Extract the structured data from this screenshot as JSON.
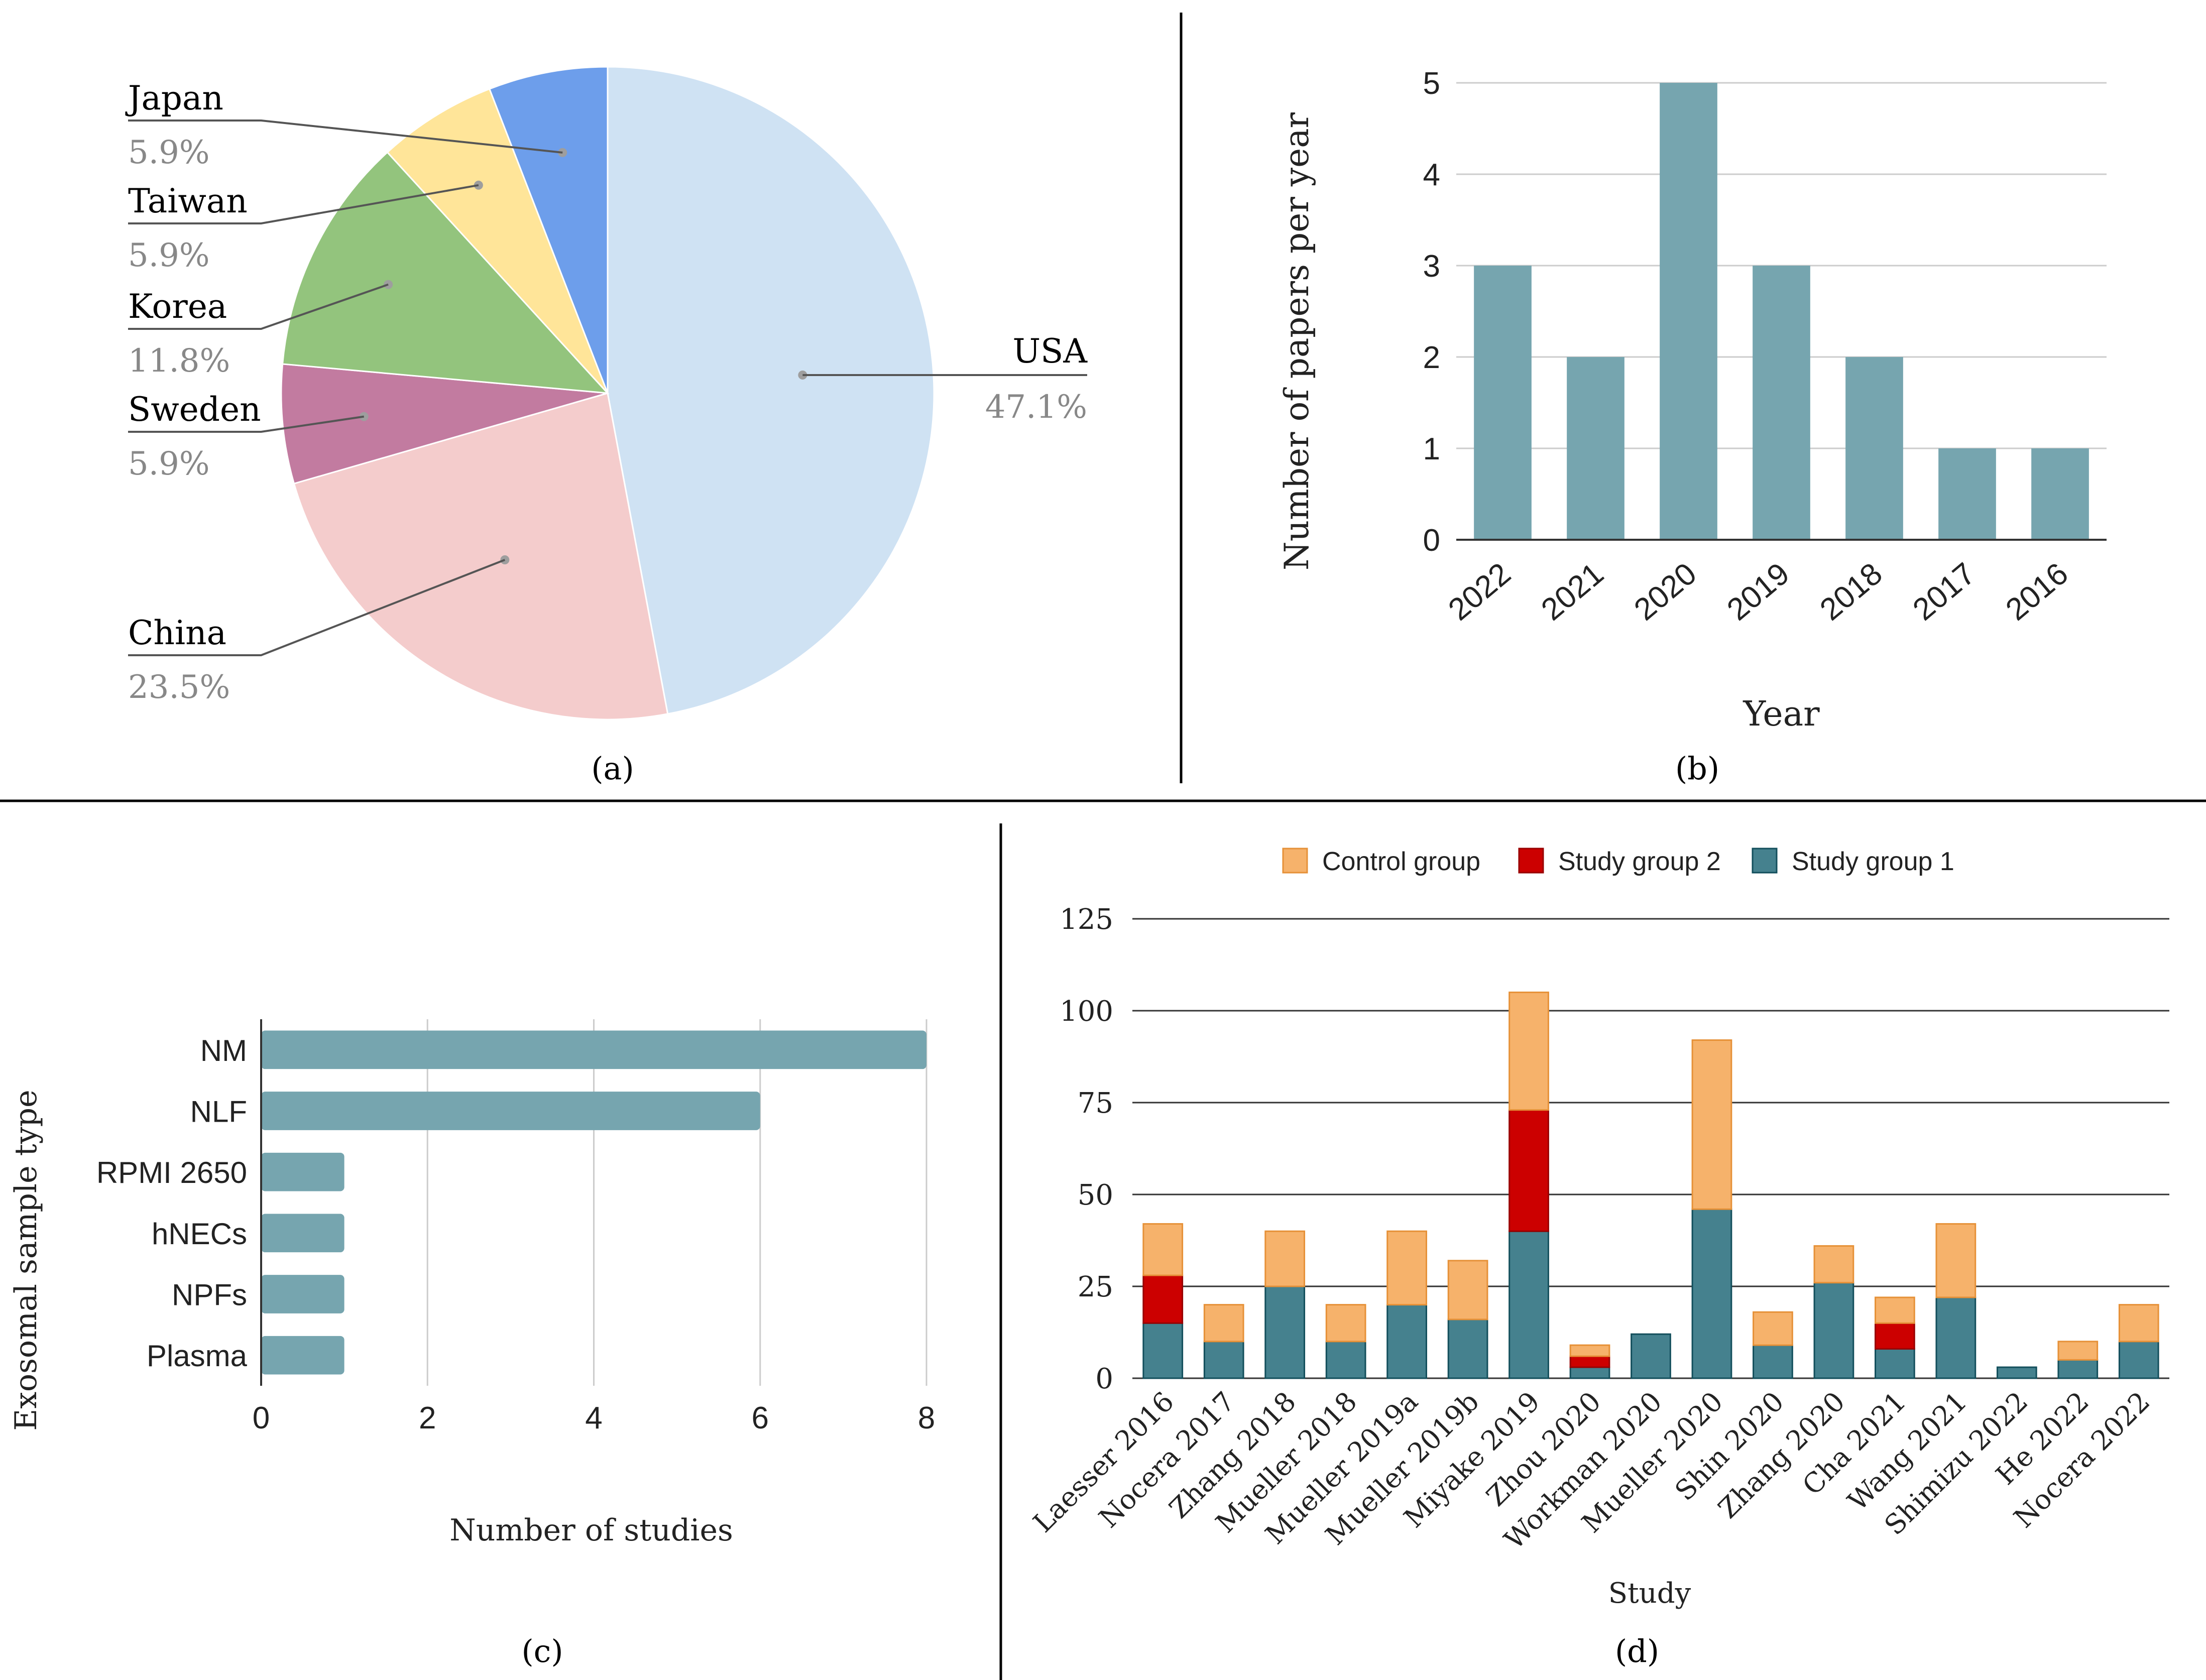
{
  "figure": {
    "panel_labels": [
      "(a)",
      "(b)",
      "(c)",
      "(d)"
    ]
  },
  "chart_data": [
    {
      "panel": "(a)",
      "type": "pie",
      "title": "",
      "slices": [
        {
          "label": "USA",
          "pct_label": "47.1%",
          "value": 47.1,
          "color": "#cfe2f3"
        },
        {
          "label": "China",
          "pct_label": "23.5%",
          "value": 23.5,
          "color": "#f4cccc"
        },
        {
          "label": "Sweden",
          "pct_label": "5.9%",
          "value": 5.9,
          "color": "#c27ba0"
        },
        {
          "label": "Korea",
          "pct_label": "11.8%",
          "value": 11.8,
          "color": "#93c47d"
        },
        {
          "label": "Taiwan",
          "pct_label": "5.9%",
          "value": 5.9,
          "color": "#ffe599"
        },
        {
          "label": "Japan",
          "pct_label": "5.9%",
          "value": 5.9,
          "color": "#6d9eeb"
        }
      ]
    },
    {
      "panel": "(b)",
      "type": "bar",
      "title": "",
      "xlabel": "Year",
      "ylabel": "Number of papers per year",
      "categories": [
        "2022",
        "2021",
        "2020",
        "2019",
        "2018",
        "2017",
        "2016"
      ],
      "values": [
        3,
        2,
        5,
        3,
        2,
        1,
        1
      ],
      "ylim": [
        0,
        5
      ],
      "yticks": [
        0,
        1,
        2,
        3,
        4,
        5
      ],
      "grid": true,
      "color": "#76a5af"
    },
    {
      "panel": "(c)",
      "type": "bar",
      "orientation": "horizontal",
      "title": "",
      "xlabel": "Number of studies",
      "ylabel": "Exosomal sample type",
      "categories": [
        "NM",
        "NLF",
        "RPMI 2650",
        "hNECs",
        "NPFs",
        "Plasma"
      ],
      "values": [
        8,
        6,
        1,
        1,
        1,
        1
      ],
      "xlim": [
        0,
        8
      ],
      "xticks": [
        0,
        2,
        4,
        6,
        8
      ],
      "grid": true,
      "color": "#76a5af"
    },
    {
      "panel": "(d)",
      "type": "bar",
      "stacked": true,
      "title": "",
      "xlabel": "Study",
      "ylabel": "",
      "categories": [
        "Laesser 2016",
        "Nocera 2017",
        "Zhang 2018",
        "Mueller 2018",
        "Mueller 2019a",
        "Mueller 2019b",
        "Miyake 2019",
        "Zhou 2020",
        "Workman 2020",
        "Mueller 2020",
        "Shin 2020",
        "Zhang 2020",
        "Cha 2021",
        "Wang 2021",
        "Shimizu 2022",
        "He 2022",
        "Nocera 2022"
      ],
      "legend_order": [
        "Control group",
        "Study group 2",
        "Study group 1"
      ],
      "legend_position": "top",
      "series": [
        {
          "name": "Study group 1",
          "color": "#45818e",
          "values": [
            15,
            10,
            25,
            10,
            20,
            16,
            40,
            3,
            12,
            46,
            9,
            26,
            8,
            22,
            3,
            5,
            10
          ]
        },
        {
          "name": "Study group 2",
          "color": "#cc0000",
          "values": [
            13,
            0,
            0,
            0,
            0,
            0,
            33,
            3,
            0,
            0,
            0,
            0,
            7,
            0,
            0,
            0,
            0
          ]
        },
        {
          "name": "Control group",
          "color": "#f6b26b",
          "values": [
            14,
            10,
            15,
            10,
            20,
            16,
            32,
            3,
            0,
            46,
            9,
            10,
            7,
            20,
            0,
            5,
            10
          ]
        }
      ],
      "ylim": [
        0,
        125
      ],
      "yticks": [
        0,
        25,
        50,
        75,
        100,
        125
      ],
      "grid": true
    }
  ]
}
